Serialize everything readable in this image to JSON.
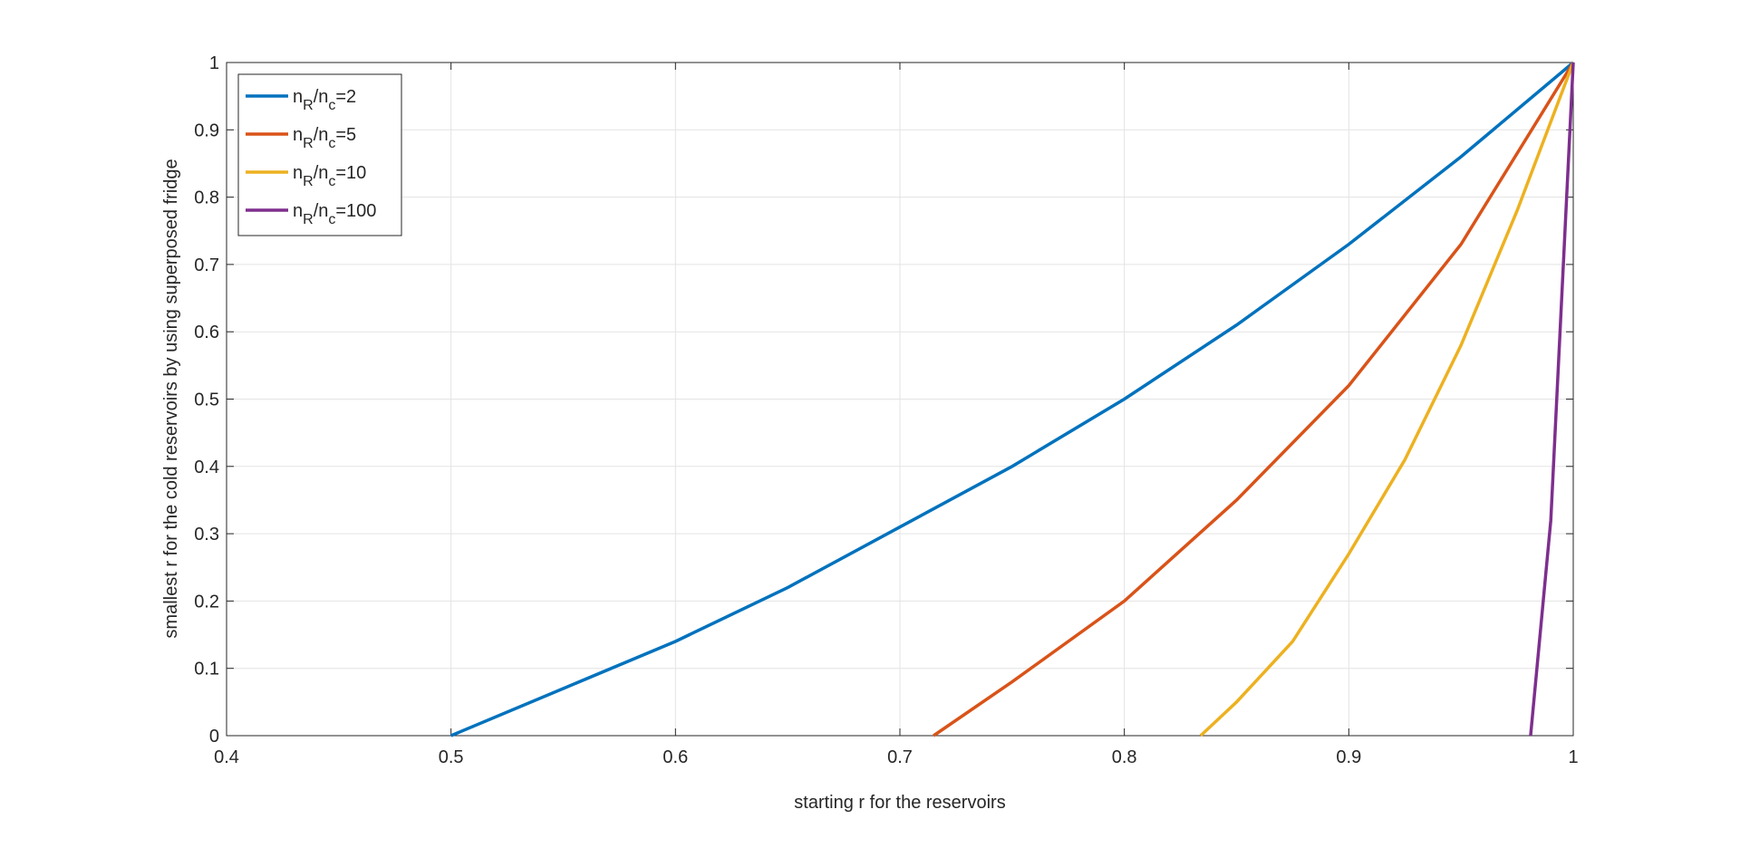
{
  "chart_data": {
    "type": "line",
    "xlabel": "starting r for the reservoirs",
    "ylabel": "smallest r for the cold reservoirs by using superposed fridge",
    "xlim": [
      0.4,
      1
    ],
    "ylim": [
      0,
      1
    ],
    "xticks": [
      0.4,
      0.5,
      0.6,
      0.7,
      0.8,
      0.9,
      1
    ],
    "yticks": [
      0,
      0.1,
      0.2,
      0.3,
      0.4,
      0.5,
      0.6,
      0.7,
      0.8,
      0.9,
      1
    ],
    "grid": true,
    "legend_position": "top-left",
    "series": [
      {
        "name": "nR/nc=2",
        "color": "#0072bd",
        "x": [
          0.5,
          0.55,
          0.6,
          0.65,
          0.7,
          0.75,
          0.8,
          0.85,
          0.9,
          0.95,
          1
        ],
        "values": [
          0,
          0.07,
          0.14,
          0.22,
          0.31,
          0.4,
          0.5,
          0.61,
          0.73,
          0.86,
          1
        ]
      },
      {
        "name": "nR/nc=5",
        "color": "#d95319",
        "x": [
          0.715,
          0.75,
          0.8,
          0.85,
          0.9,
          0.95,
          1
        ],
        "values": [
          0,
          0.08,
          0.2,
          0.35,
          0.52,
          0.73,
          1
        ]
      },
      {
        "name": "nR/nc=10",
        "color": "#edb120",
        "x": [
          0.834,
          0.85,
          0.875,
          0.9,
          0.925,
          0.95,
          0.975,
          1
        ],
        "values": [
          0,
          0.05,
          0.14,
          0.27,
          0.41,
          0.58,
          0.78,
          1
        ]
      },
      {
        "name": "nR/nc=100",
        "color": "#7e2f8e",
        "x": [
          0.981,
          0.99,
          1
        ],
        "values": [
          0,
          0.32,
          1
        ]
      }
    ]
  }
}
